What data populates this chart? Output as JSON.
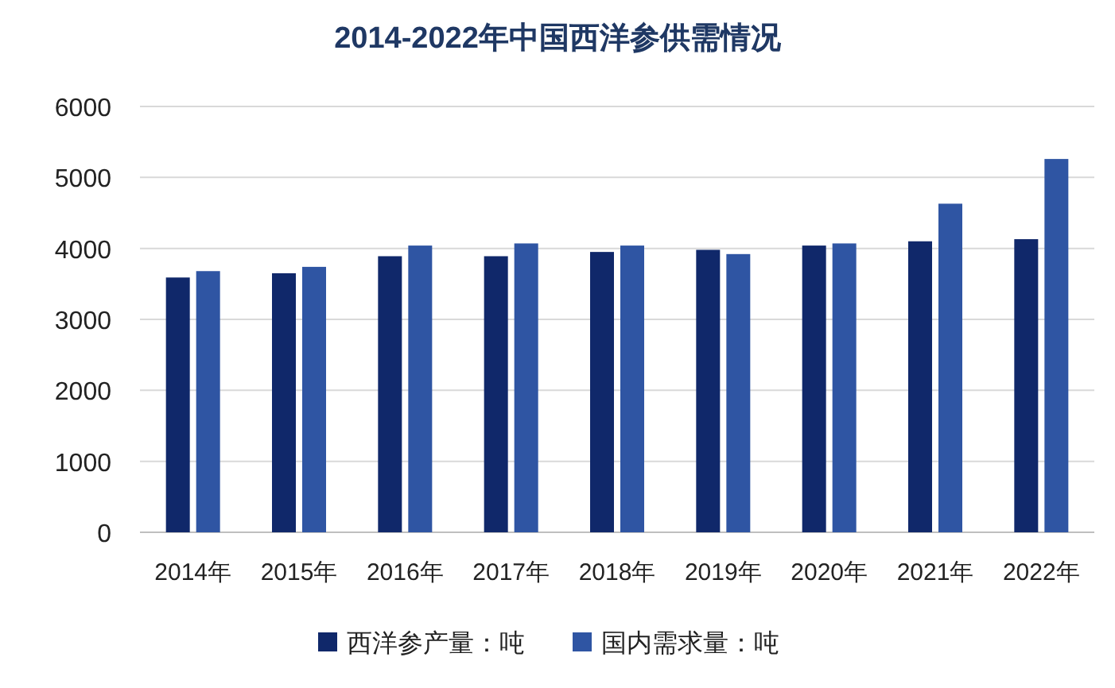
{
  "chart_data": {
    "type": "bar",
    "title": "2014-2022年中国西洋参供需情况",
    "categories": [
      "2014年",
      "2015年",
      "2016年",
      "2017年",
      "2018年",
      "2019年",
      "2020年",
      "2021年",
      "2022年"
    ],
    "series": [
      {
        "name": "西洋参产量：吨",
        "color": "#10286a",
        "values": [
          3590,
          3650,
          3890,
          3890,
          3950,
          3980,
          4040,
          4100,
          4130
        ]
      },
      {
        "name": "国内需求量：吨",
        "color": "#2f55a3",
        "values": [
          3680,
          3740,
          4040,
          4070,
          4040,
          3920,
          4070,
          4630,
          5260
        ]
      }
    ],
    "ylim": [
      0,
      6000
    ],
    "yticks": [
      0,
      1000,
      2000,
      3000,
      4000,
      5000,
      6000
    ],
    "grid": "y",
    "legend": "bottom"
  }
}
